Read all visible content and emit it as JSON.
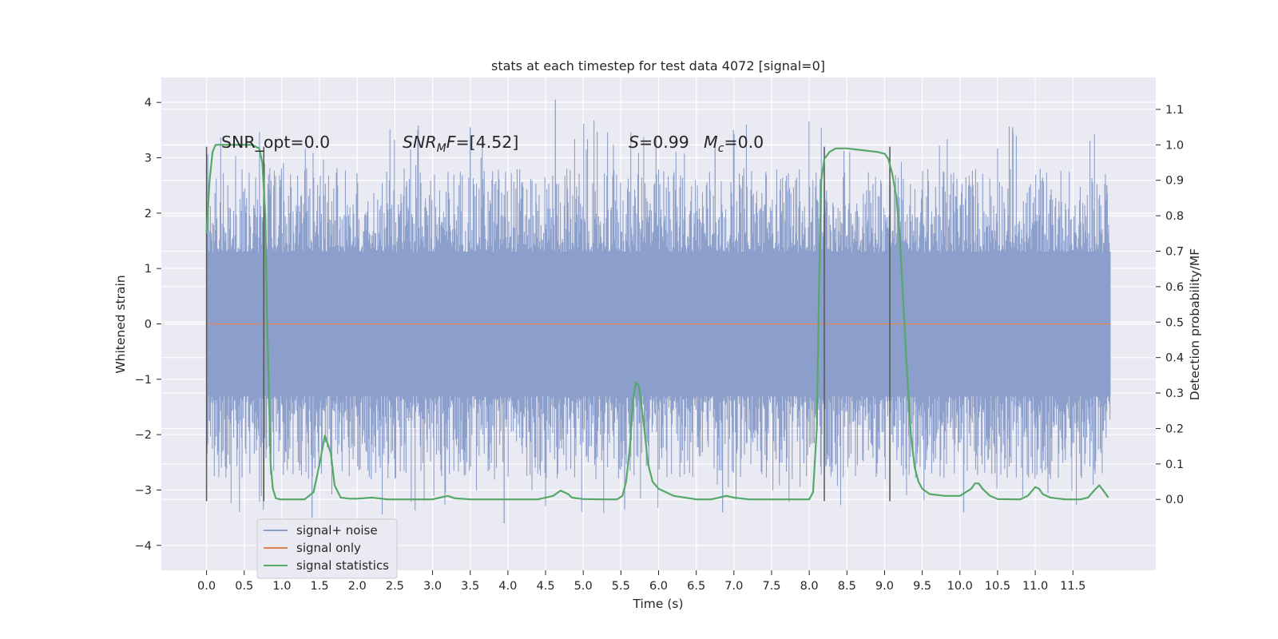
{
  "chart_data": {
    "type": "line",
    "title": "stats at each timestep for test data 4072 [signal=0]",
    "xlabel": "Time (s)",
    "ylabel": "Whitened strain",
    "y2label": "Detection probability/MF",
    "xlim": [
      -0.6,
      12.6
    ],
    "ylim": [
      -4.45,
      4.45
    ],
    "y2lim": [
      -0.2,
      1.19
    ],
    "x_ticks": [
      "0.0",
      "0.5",
      "1.0",
      "1.5",
      "2.0",
      "2.5",
      "3.0",
      "3.5",
      "4.0",
      "4.5",
      "5.0",
      "5.5",
      "6.0",
      "6.5",
      "7.0",
      "7.5",
      "8.0",
      "8.5",
      "9.0",
      "9.5",
      "10.0",
      "10.5",
      "11.0",
      "11.5"
    ],
    "y_ticks": [
      "4",
      "3",
      "2",
      "1",
      "0",
      "−1",
      "−2",
      "−3",
      "−4"
    ],
    "y2_ticks": [
      "1.1",
      "1.0",
      "0.9",
      "0.8",
      "0.7",
      "0.6",
      "0.5",
      "0.4",
      "0.3",
      "0.2",
      "0.1",
      "0.0"
    ],
    "grid": true,
    "legend": {
      "placement": "lower-left",
      "entries": [
        "signal+ noise",
        "signal only",
        "signal statistics"
      ]
    },
    "colors": {
      "noise": "#8c9fcb",
      "signal": "#dd8452",
      "stats": "#55a868",
      "background": "#eaeaf2",
      "vlines": "#555555"
    },
    "annotations": {
      "snr_opt": "SNR_opt=0.0",
      "snr_mf": "[4.52]",
      "s_value": "=0.99",
      "mc_value": "=0.0"
    },
    "series": [
      {
        "name": "signal+ noise",
        "description_type": "noise",
        "x_range": [
          0,
          12
        ],
        "dense_y_range": [
          -1.3,
          1.3
        ],
        "spike_range": [
          -3.6,
          4.05
        ]
      },
      {
        "name": "signal only",
        "x": [
          0,
          12
        ],
        "y": [
          0,
          0
        ]
      },
      {
        "name": "signal statistics",
        "axis": "right",
        "x": [
          0.0,
          0.04,
          0.08,
          0.12,
          0.16,
          0.2,
          0.3,
          0.5,
          0.6,
          0.7,
          0.74,
          0.78,
          0.8,
          0.85,
          0.88,
          0.92,
          0.98,
          1.1,
          1.3,
          1.42,
          1.5,
          1.57,
          1.65,
          1.7,
          1.78,
          1.9,
          2.0,
          2.2,
          2.4,
          2.6,
          2.8,
          3.0,
          3.1,
          3.2,
          3.3,
          3.5,
          4.0,
          4.4,
          4.6,
          4.7,
          4.8,
          4.85,
          5.0,
          5.3,
          5.45,
          5.52,
          5.57,
          5.62,
          5.66,
          5.7,
          5.74,
          5.8,
          5.86,
          5.92,
          6.0,
          6.2,
          6.5,
          6.7,
          6.8,
          6.9,
          7.0,
          7.2,
          7.6,
          7.9,
          8.0,
          8.05,
          8.1,
          8.13,
          8.16,
          8.2,
          8.27,
          8.35,
          8.5,
          8.7,
          8.9,
          9.0,
          9.05,
          9.1,
          9.16,
          9.2,
          9.25,
          9.3,
          9.35,
          9.4,
          9.45,
          9.5,
          9.6,
          9.8,
          10.0,
          10.15,
          10.2,
          10.25,
          10.3,
          10.4,
          10.5,
          10.8,
          10.9,
          11.0,
          11.05,
          11.1,
          11.2,
          11.4,
          11.6,
          11.7,
          11.78,
          11.85,
          11.92,
          11.97
        ],
        "y": [
          0.75,
          0.9,
          0.98,
          1.0,
          1.0,
          1.0,
          1.0,
          1.0,
          1.0,
          0.99,
          0.95,
          0.8,
          0.55,
          0.1,
          0.03,
          0.003,
          0.0,
          0.0,
          0.0,
          0.02,
          0.1,
          0.18,
          0.13,
          0.04,
          0.005,
          0.002,
          0.002,
          0.005,
          0.0,
          0.0,
          0.0,
          0.0,
          0.005,
          0.01,
          0.003,
          0.0,
          0.0,
          0.0,
          0.01,
          0.025,
          0.015,
          0.005,
          0.001,
          0.0,
          0.0,
          0.01,
          0.05,
          0.15,
          0.28,
          0.33,
          0.32,
          0.22,
          0.1,
          0.05,
          0.03,
          0.01,
          0.0,
          0.0,
          0.005,
          0.01,
          0.005,
          0.0,
          0.0,
          0.0,
          0.0,
          0.02,
          0.2,
          0.6,
          0.9,
          0.96,
          0.98,
          0.99,
          0.99,
          0.985,
          0.98,
          0.975,
          0.96,
          0.92,
          0.85,
          0.75,
          0.55,
          0.35,
          0.18,
          0.09,
          0.05,
          0.03,
          0.015,
          0.01,
          0.01,
          0.03,
          0.045,
          0.045,
          0.03,
          0.01,
          0.001,
          0.0,
          0.01,
          0.035,
          0.03,
          0.015,
          0.005,
          0.0,
          0.0,
          0.005,
          0.025,
          0.04,
          0.02,
          0.005
        ]
      }
    ],
    "vertical_markers_x": [
      0.0,
      0.76,
      8.2,
      9.07
    ]
  }
}
